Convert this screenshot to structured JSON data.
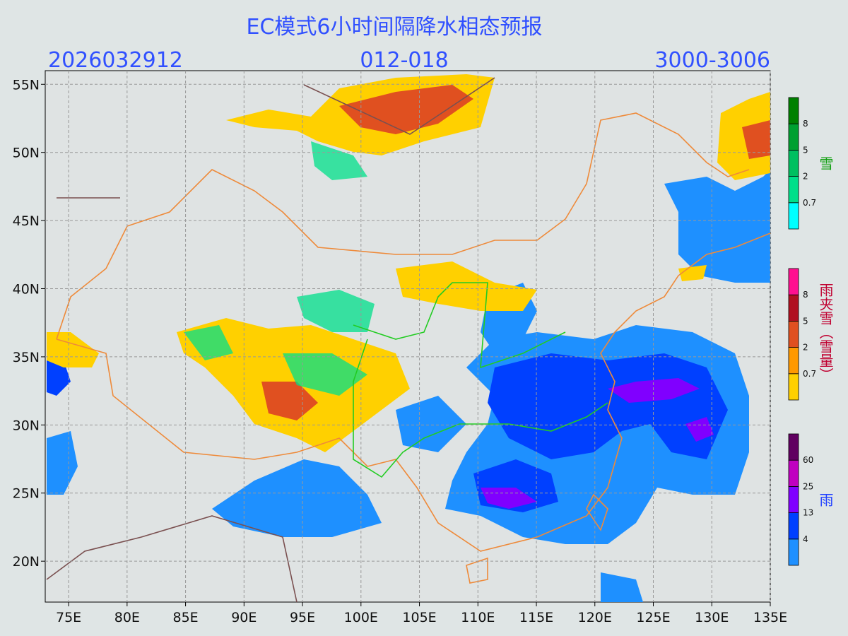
{
  "header": {
    "title": "EC模式6小时间隔降水相态预报",
    "init_time": "2026032912",
    "forecast_hours": "012-018",
    "code": "3000-3006"
  },
  "map": {
    "lon_range": [
      73,
      135
    ],
    "lat_range": [
      17,
      56
    ],
    "lon_ticks": [
      {
        "value": 75,
        "label": "75E"
      },
      {
        "value": 80,
        "label": "80E"
      },
      {
        "value": 85,
        "label": "85E"
      },
      {
        "value": 90,
        "label": "90E"
      },
      {
        "value": 95,
        "label": "95E"
      },
      {
        "value": 100,
        "label": "100E"
      },
      {
        "value": 105,
        "label": "105E"
      },
      {
        "value": 110,
        "label": "110E"
      },
      {
        "value": 115,
        "label": "115E"
      },
      {
        "value": 120,
        "label": "120E"
      },
      {
        "value": 125,
        "label": "125E"
      },
      {
        "value": 130,
        "label": "130E"
      },
      {
        "value": 135,
        "label": "135E"
      }
    ],
    "lat_ticks": [
      {
        "value": 55,
        "label": "55N"
      },
      {
        "value": 50,
        "label": "50N"
      },
      {
        "value": 45,
        "label": "45N"
      },
      {
        "value": 40,
        "label": "40N"
      },
      {
        "value": 35,
        "label": "35N"
      },
      {
        "value": 30,
        "label": "30N"
      },
      {
        "value": 25,
        "label": "25N"
      },
      {
        "value": 20,
        "label": "20N"
      }
    ]
  },
  "legends": [
    {
      "title": "雪",
      "title_color": "#10a010",
      "colors": [
        "#00ffff",
        "#00e08a",
        "#00c060",
        "#00a030",
        "#008000"
      ],
      "ticks": [
        0.7,
        2,
        5,
        8
      ]
    },
    {
      "title": "雨夹雪（雪量）",
      "title_color": "#c00030",
      "colors": [
        "#ffd000",
        "#ff9900",
        "#e05020",
        "#b01020",
        "#ff1090"
      ],
      "ticks": [
        0.7,
        2,
        5,
        8
      ]
    },
    {
      "title": "雨",
      "title_color": "#2040ff",
      "colors": [
        "#1e90ff",
        "#0040ff",
        "#8000ff",
        "#c000c0",
        "#600060"
      ],
      "ticks": [
        4,
        13,
        25,
        60
      ]
    }
  ]
}
